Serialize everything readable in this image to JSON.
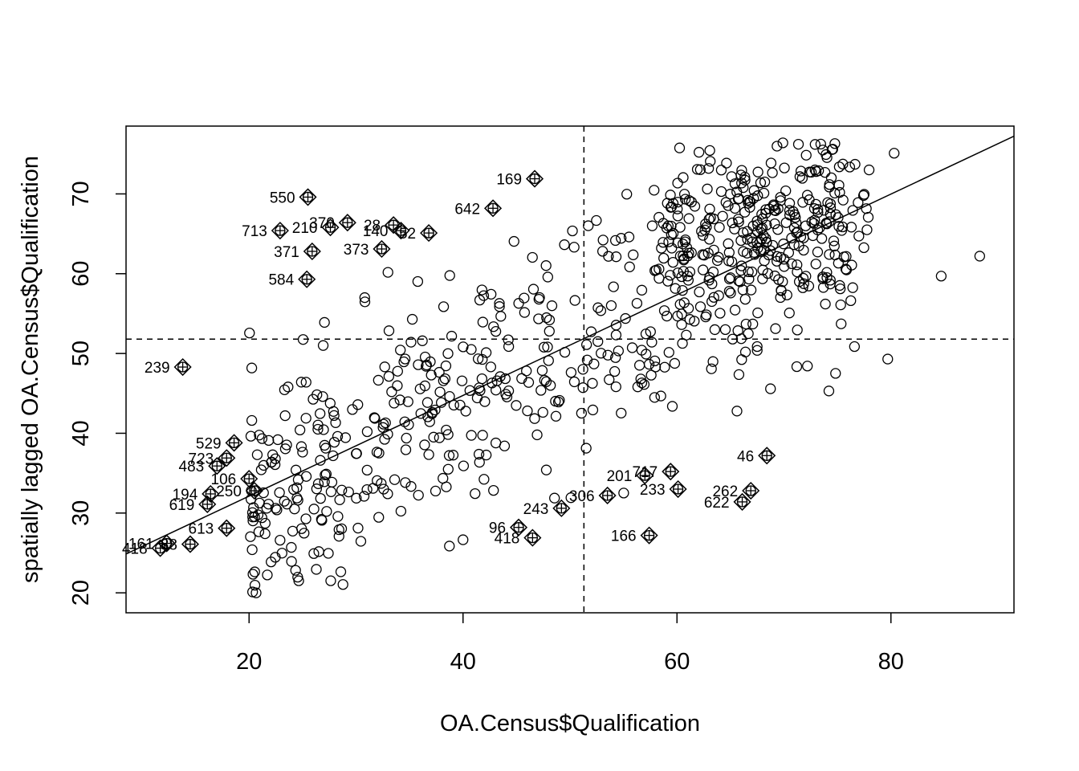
{
  "chart_data": {
    "type": "scatter",
    "title": "",
    "xlabel": "OA.Census$Qualification",
    "ylabel": "spatially lagged OA.Census$Qualification",
    "xlim": [
      8.5,
      91.5
    ],
    "ylim": [
      17.5,
      78.5
    ],
    "x_ticks": [
      20,
      40,
      60,
      80
    ],
    "y_ticks": [
      20,
      30,
      40,
      50,
      60,
      70
    ],
    "grid": false,
    "legend": "none",
    "reference_lines": {
      "mean_x": 51.3,
      "mean_y": 51.8
    },
    "regression_line": {
      "intercept": 19.5,
      "slope": 0.631
    },
    "influential_points": [
      {
        "label": "550",
        "x": 25.5,
        "y": 69.6
      },
      {
        "label": "169",
        "x": 46.7,
        "y": 71.9
      },
      {
        "label": "642",
        "x": 42.8,
        "y": 68.2
      },
      {
        "label": "713",
        "x": 22.9,
        "y": 65.4
      },
      {
        "label": "210",
        "x": 27.6,
        "y": 65.8
      },
      {
        "label": "370",
        "x": 29.2,
        "y": 66.4
      },
      {
        "label": "28",
        "x": 33.5,
        "y": 66.1
      },
      {
        "label": "140",
        "x": 34.2,
        "y": 65.4
      },
      {
        "label": "52",
        "x": 36.8,
        "y": 65.1
      },
      {
        "label": "371",
        "x": 25.9,
        "y": 62.8
      },
      {
        "label": "373",
        "x": 32.4,
        "y": 63.1
      },
      {
        "label": "584",
        "x": 25.4,
        "y": 59.3
      },
      {
        "label": "239",
        "x": 13.8,
        "y": 48.3
      },
      {
        "label": "529",
        "x": 18.6,
        "y": 38.8
      },
      {
        "label": "723",
        "x": 17.9,
        "y": 36.9
      },
      {
        "label": "483",
        "x": 17.0,
        "y": 35.9
      },
      {
        "label": "106",
        "x": 20.0,
        "y": 34.3
      },
      {
        "label": "194",
        "x": 16.4,
        "y": 32.4
      },
      {
        "label": "250",
        "x": 20.5,
        "y": 32.8
      },
      {
        "label": "619",
        "x": 16.1,
        "y": 31.1
      },
      {
        "label": "613",
        "x": 17.9,
        "y": 28.1
      },
      {
        "label": "161",
        "x": 12.3,
        "y": 26.2
      },
      {
        "label": "418",
        "x": 11.7,
        "y": 25.6
      },
      {
        "label": "88",
        "x": 14.5,
        "y": 26.1
      },
      {
        "label": "201",
        "x": 57.0,
        "y": 34.7
      },
      {
        "label": "717",
        "x": 59.4,
        "y": 35.2
      },
      {
        "label": "233",
        "x": 60.1,
        "y": 33.0
      },
      {
        "label": "46",
        "x": 68.4,
        "y": 37.2
      },
      {
        "label": "262",
        "x": 66.9,
        "y": 32.8
      },
      {
        "label": "622",
        "x": 66.1,
        "y": 31.4
      },
      {
        "label": "306",
        "x": 53.5,
        "y": 32.2
      },
      {
        "label": "243",
        "x": 49.2,
        "y": 30.6
      },
      {
        "label": "96",
        "x": 45.2,
        "y": 28.2
      },
      {
        "label": "418",
        "x": 46.5,
        "y": 26.9
      },
      {
        "label": "166",
        "x": 57.4,
        "y": 27.2
      }
    ],
    "points_summary": "approx. 700 output areas; circles show observed x vs spatially lagged y"
  }
}
